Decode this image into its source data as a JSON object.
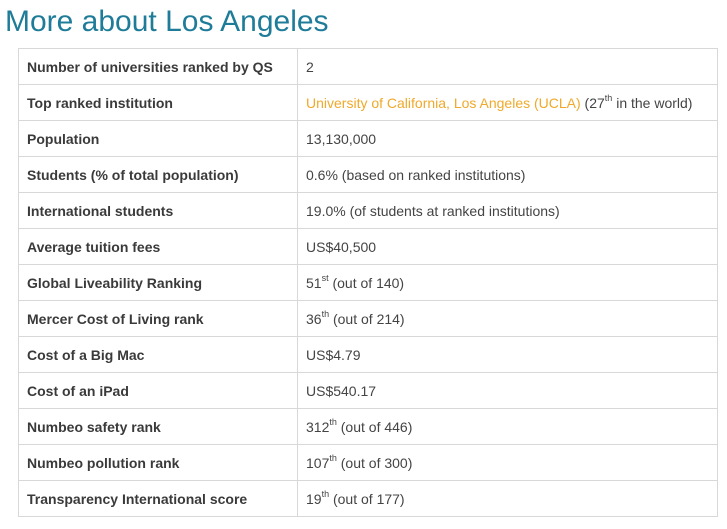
{
  "title": "More about Los Angeles",
  "rows": [
    {
      "label": "Number of universities ranked by QS",
      "value": "2"
    },
    {
      "label": "Top ranked institution",
      "link": "University of California, Los Angeles (UCLA)",
      "pre": " (27",
      "sup": "th",
      "post": " in the world)"
    },
    {
      "label": "Population",
      "value": "13,130,000"
    },
    {
      "label": "Students (% of total population)",
      "value": "0.6% (based on ranked institutions)"
    },
    {
      "label": "International students",
      "value": "19.0% (of students at ranked institutions)"
    },
    {
      "label": "Average tuition fees",
      "value": "US$40,500"
    },
    {
      "label": "Global Liveability Ranking",
      "num": "51",
      "sup": "st",
      "post": " (out of 140)"
    },
    {
      "label": "Mercer Cost of Living rank",
      "num": "36",
      "sup": "th",
      "post": " (out of 214)"
    },
    {
      "label": "Cost of a Big Mac",
      "value": "US$4.79"
    },
    {
      "label": "Cost of an iPad",
      "value": "US$540.17"
    },
    {
      "label": "Numbeo safety rank",
      "num": "312",
      "sup": "th",
      "post": " (out of 446)"
    },
    {
      "label": "Numbeo pollution rank",
      "num": "107",
      "sup": "th",
      "post": " (out of 300)"
    },
    {
      "label": "Transparency International score",
      "num": "19",
      "sup": "th",
      "post": " (out of 177)"
    }
  ],
  "colors": {
    "title": "#1f7c99",
    "link": "#f0a92a",
    "border": "#d8d8d8"
  }
}
